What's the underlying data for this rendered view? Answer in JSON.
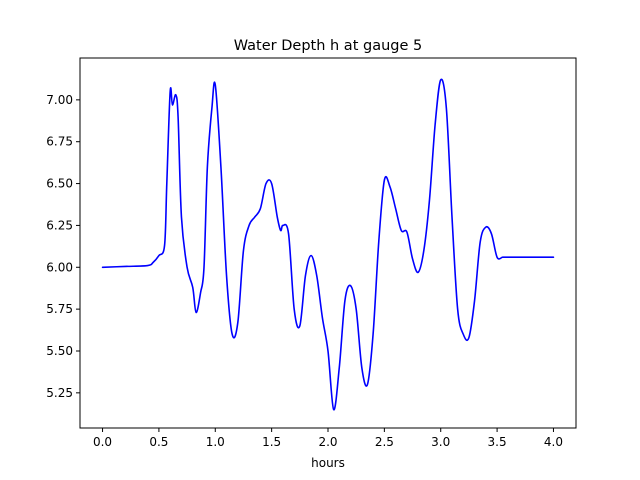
{
  "chart_data": {
    "type": "line",
    "title": "Water Depth h at gauge 5",
    "xlabel": "hours",
    "ylabel": "",
    "xlim": [
      -0.2,
      4.2
    ],
    "ylim": [
      5.04,
      7.25
    ],
    "grid": false,
    "x_ticks": [
      0.0,
      0.5,
      1.0,
      1.5,
      2.0,
      2.5,
      3.0,
      3.5,
      4.0
    ],
    "x_tick_labels": [
      "0.0",
      "0.5",
      "1.0",
      "1.5",
      "2.0",
      "2.5",
      "3.0",
      "3.5",
      "4.0"
    ],
    "y_ticks": [
      5.25,
      5.5,
      5.75,
      6.0,
      6.25,
      6.5,
      6.75,
      7.0
    ],
    "y_tick_labels": [
      "5.25",
      "5.50",
      "5.75",
      "6.00",
      "6.25",
      "6.50",
      "6.75",
      "7.00"
    ],
    "series": [
      {
        "color": "#0000ff",
        "x": [
          0.0,
          0.2,
          0.4,
          0.45,
          0.5,
          0.55,
          0.57,
          0.6,
          0.62,
          0.65,
          0.67,
          0.7,
          0.75,
          0.8,
          0.83,
          0.87,
          0.9,
          0.93,
          0.97,
          1.0,
          1.05,
          1.1,
          1.15,
          1.2,
          1.25,
          1.3,
          1.35,
          1.4,
          1.45,
          1.5,
          1.55,
          1.58,
          1.6,
          1.65,
          1.7,
          1.75,
          1.8,
          1.85,
          1.9,
          1.95,
          2.0,
          2.05,
          2.1,
          2.15,
          2.2,
          2.25,
          2.3,
          2.35,
          2.4,
          2.45,
          2.5,
          2.55,
          2.6,
          2.65,
          2.7,
          2.75,
          2.8,
          2.85,
          2.9,
          2.95,
          3.0,
          3.05,
          3.1,
          3.15,
          3.2,
          3.25,
          3.3,
          3.35,
          3.4,
          3.45,
          3.5,
          3.55,
          3.6,
          3.65,
          3.7,
          3.75,
          3.8,
          3.85,
          3.9,
          3.95,
          4.0
        ],
        "y": [
          6.0,
          6.005,
          6.01,
          6.03,
          6.07,
          6.13,
          6.5,
          7.05,
          6.97,
          7.03,
          6.9,
          6.3,
          6.0,
          5.88,
          5.73,
          5.85,
          6.0,
          6.6,
          6.95,
          7.09,
          6.6,
          5.95,
          5.6,
          5.67,
          6.1,
          6.25,
          6.3,
          6.35,
          6.5,
          6.5,
          6.3,
          6.22,
          6.25,
          6.2,
          5.75,
          5.65,
          5.95,
          6.07,
          5.95,
          5.7,
          5.5,
          5.15,
          5.4,
          5.8,
          5.89,
          5.75,
          5.4,
          5.3,
          5.6,
          6.15,
          6.52,
          6.48,
          6.35,
          6.22,
          6.21,
          6.05,
          5.97,
          6.1,
          6.4,
          6.85,
          7.12,
          6.95,
          6.3,
          5.75,
          5.6,
          5.58,
          5.8,
          6.15,
          6.24,
          6.2,
          6.06,
          6.06,
          6.06,
          6.06,
          6.06,
          6.06,
          6.06,
          6.06,
          6.06,
          6.06,
          6.06
        ]
      }
    ]
  }
}
